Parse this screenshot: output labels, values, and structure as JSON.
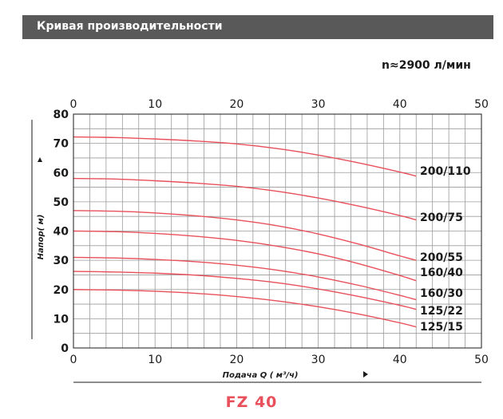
{
  "header": {
    "title": "Кривая производительности"
  },
  "speed_label": "n≈2900 л/мин",
  "model_label": "FZ 40",
  "colors": {
    "curve": "#e8505b",
    "grid": "#9a9a9a",
    "axis": "#1a1a1a",
    "header_bg": "#595959"
  },
  "chart_data": {
    "type": "line",
    "title": "",
    "xlabel": "Подача Q ( м³/ч)",
    "ylabel": "Напор( м)",
    "xlim": [
      0,
      50
    ],
    "ylim": [
      0,
      80
    ],
    "x_ticks": [
      "0",
      "10",
      "20",
      "30",
      "40",
      "50"
    ],
    "y_ticks": [
      "0",
      "10",
      "20",
      "30",
      "40",
      "50",
      "60",
      "70",
      "80"
    ],
    "grid": true,
    "legend": "curve labels at right end",
    "series": [
      {
        "name": "200/110",
        "x": [
          0,
          5,
          10,
          15,
          20,
          25,
          30,
          35,
          40,
          42
        ],
        "y": [
          72.2,
          72,
          71.5,
          70.8,
          69.8,
          68.2,
          66,
          63.3,
          60.2,
          58.8
        ]
      },
      {
        "name": "200/75",
        "x": [
          0,
          5,
          10,
          15,
          20,
          25,
          30,
          35,
          40,
          42
        ],
        "y": [
          58,
          57.8,
          57.2,
          56.4,
          55.3,
          53.6,
          51.3,
          48.5,
          45.3,
          43.8
        ]
      },
      {
        "name": "200/55",
        "x": [
          0,
          5,
          10,
          15,
          20,
          25,
          30,
          35,
          40,
          42
        ],
        "y": [
          47,
          46.8,
          46.2,
          45.2,
          43.8,
          41.8,
          39,
          35.5,
          31.5,
          30
        ]
      },
      {
        "name": "160/40",
        "x": [
          0,
          5,
          10,
          15,
          20,
          25,
          30,
          35,
          40,
          42
        ],
        "y": [
          40,
          39.8,
          39.2,
          38.2,
          36.8,
          34.8,
          32.2,
          28.8,
          24.8,
          23
        ]
      },
      {
        "name": "160/30",
        "x": [
          0,
          5,
          10,
          15,
          20,
          25,
          30,
          35,
          40,
          42
        ],
        "y": [
          31,
          30.8,
          30.3,
          29.5,
          28.3,
          26.6,
          24.3,
          21.4,
          18,
          16.5
        ]
      },
      {
        "name": "125/22",
        "x": [
          0,
          5,
          10,
          15,
          20,
          25,
          30,
          35,
          40,
          42
        ],
        "y": [
          26.2,
          26,
          25.6,
          24.9,
          23.8,
          22.3,
          20.2,
          17.6,
          14.6,
          13.2
        ]
      },
      {
        "name": "125/15",
        "x": [
          0,
          5,
          10,
          15,
          20,
          25,
          30,
          35,
          40,
          42
        ],
        "y": [
          20,
          19.8,
          19.4,
          18.7,
          17.6,
          16.1,
          14.1,
          11.6,
          8.6,
          7.2
        ]
      }
    ]
  }
}
